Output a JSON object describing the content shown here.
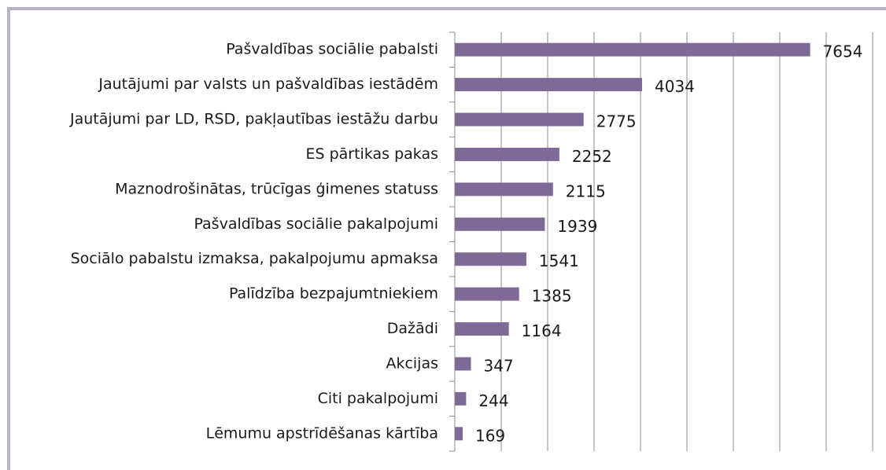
{
  "chart_data": {
    "type": "barh",
    "categories": [
      "Pašvaldības sociālie pabalsti",
      "Jautājumi par valsts un pašvaldības iestādēm",
      "Jautājumi par LD, RSD, pakļautības iestāžu darbu",
      "ES pārtikas pakas",
      "Maznodrošinātas, trūcīgas ģimenes statuss",
      "Pašvaldības sociālie pakalpojumi",
      "Sociālo pabalstu izmaksa, pakalpojumu apmaksa",
      "Palīdzība bezpajumtniekiem",
      "Dažādi",
      "Akcijas",
      "Citi pakalpojumi",
      "Lēmumu apstrīdēšanas kārtība"
    ],
    "values": [
      7654,
      4034,
      2775,
      2252,
      2115,
      1939,
      1541,
      1385,
      1164,
      347,
      244,
      169
    ],
    "color": "#7d6a97",
    "xlim": [
      0,
      9000
    ],
    "xticks": [
      0,
      1000,
      2000,
      3000,
      4000,
      5000,
      6000,
      7000,
      8000,
      9000
    ],
    "grid": true
  }
}
